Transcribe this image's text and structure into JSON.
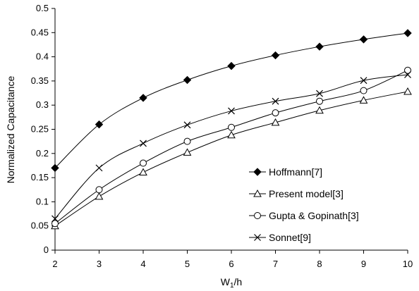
{
  "chart_data": {
    "type": "line",
    "title": "",
    "xlabel": "W",
    "xlabel_sub": "1",
    "xlabel_suffix": "/h",
    "ylabel": "Normalized Capacitance",
    "x": [
      2,
      3,
      4,
      5,
      6,
      7,
      8,
      9,
      10
    ],
    "xlim": [
      2,
      10
    ],
    "ylim": [
      0,
      0.5
    ],
    "xticks": [
      "2",
      "3",
      "4",
      "5",
      "6",
      "7",
      "8",
      "9",
      "10"
    ],
    "yticks": [
      "0",
      "0.05",
      "0.1",
      "0.15",
      "0.2",
      "0.25",
      "0.3",
      "0.35",
      "0.4",
      "0.45",
      "0.5"
    ],
    "grid": false,
    "legend_position": "bottom-right",
    "series": [
      {
        "name": "Hoffmann[7]",
        "marker": "filled-diamond",
        "color": "#000000",
        "values": [
          0.17,
          0.26,
          0.315,
          0.352,
          0.381,
          0.403,
          0.421,
          0.436,
          0.449
        ]
      },
      {
        "name": "Present model[3]",
        "marker": "open-triangle",
        "color": "#000000",
        "values": [
          0.05,
          0.111,
          0.161,
          0.202,
          0.238,
          0.264,
          0.289,
          0.31,
          0.328
        ]
      },
      {
        "name": "Gupta & Gopinath[3]",
        "marker": "open-circle",
        "color": "#000000",
        "values": [
          0.055,
          0.125,
          0.18,
          0.225,
          0.254,
          0.284,
          0.308,
          0.33,
          0.372
        ]
      },
      {
        "name": "Sonnet[9]",
        "marker": "x",
        "color": "#000000",
        "values": [
          0.065,
          0.17,
          0.221,
          0.259,
          0.288,
          0.308,
          0.324,
          0.351,
          0.363
        ]
      }
    ]
  }
}
